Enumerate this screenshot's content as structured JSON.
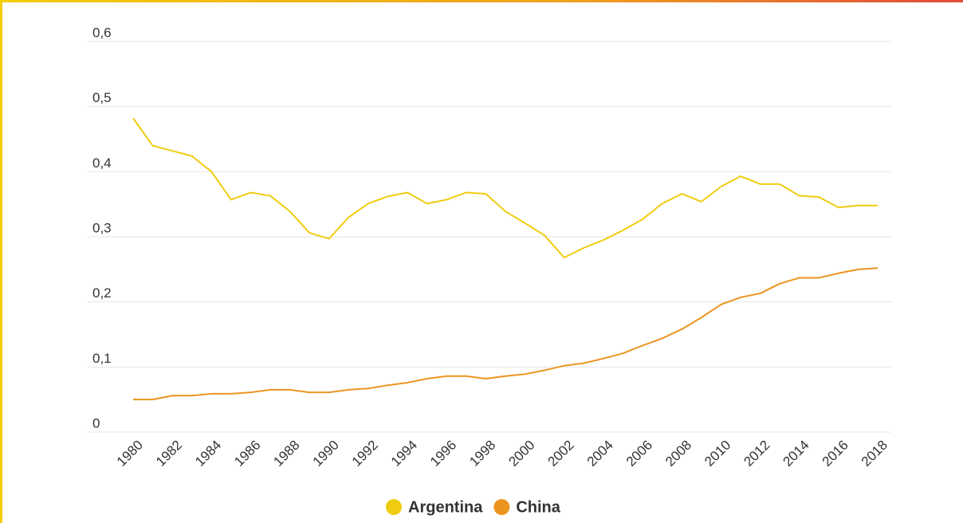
{
  "chart_data": {
    "type": "line",
    "x": [
      1980,
      1981,
      1982,
      1983,
      1984,
      1985,
      1986,
      1987,
      1988,
      1989,
      1990,
      1991,
      1992,
      1993,
      1994,
      1995,
      1996,
      1997,
      1998,
      1999,
      2000,
      2001,
      2002,
      2003,
      2004,
      2005,
      2006,
      2007,
      2008,
      2009,
      2010,
      2011,
      2012,
      2013,
      2014,
      2015,
      2016,
      2017,
      2018
    ],
    "series": [
      {
        "name": "Argentina",
        "color": "#f0cc10",
        "values": [
          0.482,
          0.44,
          0.432,
          0.424,
          0.4,
          0.357,
          0.368,
          0.363,
          0.339,
          0.306,
          0.297,
          0.33,
          0.351,
          0.362,
          0.368,
          0.351,
          0.357,
          0.368,
          0.366,
          0.339,
          0.321,
          0.302,
          0.268,
          0.283,
          0.295,
          0.31,
          0.327,
          0.351,
          0.366,
          0.354,
          0.377,
          0.393,
          0.381,
          0.381,
          0.363,
          0.361,
          0.345,
          0.348,
          0.348
        ]
      },
      {
        "name": "China",
        "color": "#ec9420",
        "values": [
          0.05,
          0.05,
          0.056,
          0.056,
          0.059,
          0.059,
          0.061,
          0.065,
          0.065,
          0.061,
          0.061,
          0.065,
          0.067,
          0.072,
          0.076,
          0.082,
          0.086,
          0.086,
          0.082,
          0.086,
          0.089,
          0.095,
          0.102,
          0.106,
          0.113,
          0.121,
          0.133,
          0.144,
          0.158,
          0.176,
          0.196,
          0.207,
          0.213,
          0.228,
          0.237,
          0.237,
          0.244,
          0.25,
          0.252
        ]
      }
    ],
    "xlim": [
      1980,
      2018
    ],
    "xticks": [
      1980,
      1982,
      1984,
      1986,
      1988,
      1990,
      1992,
      1994,
      1996,
      1998,
      2000,
      2002,
      2004,
      2006,
      2008,
      2010,
      2012,
      2014,
      2016,
      2018
    ],
    "ylim": [
      0,
      0.6
    ],
    "yticks": [
      0,
      {
        "value": 0.1,
        "label": "0,1"
      },
      {
        "value": 0.2,
        "label": "0,2"
      },
      {
        "value": 0.3,
        "label": "0,3"
      },
      {
        "value": 0.4,
        "label": "0,4"
      },
      {
        "value": 0.5,
        "label": "0,5"
      },
      {
        "value": 0.6,
        "label": "0,6"
      }
    ],
    "grid": true
  }
}
